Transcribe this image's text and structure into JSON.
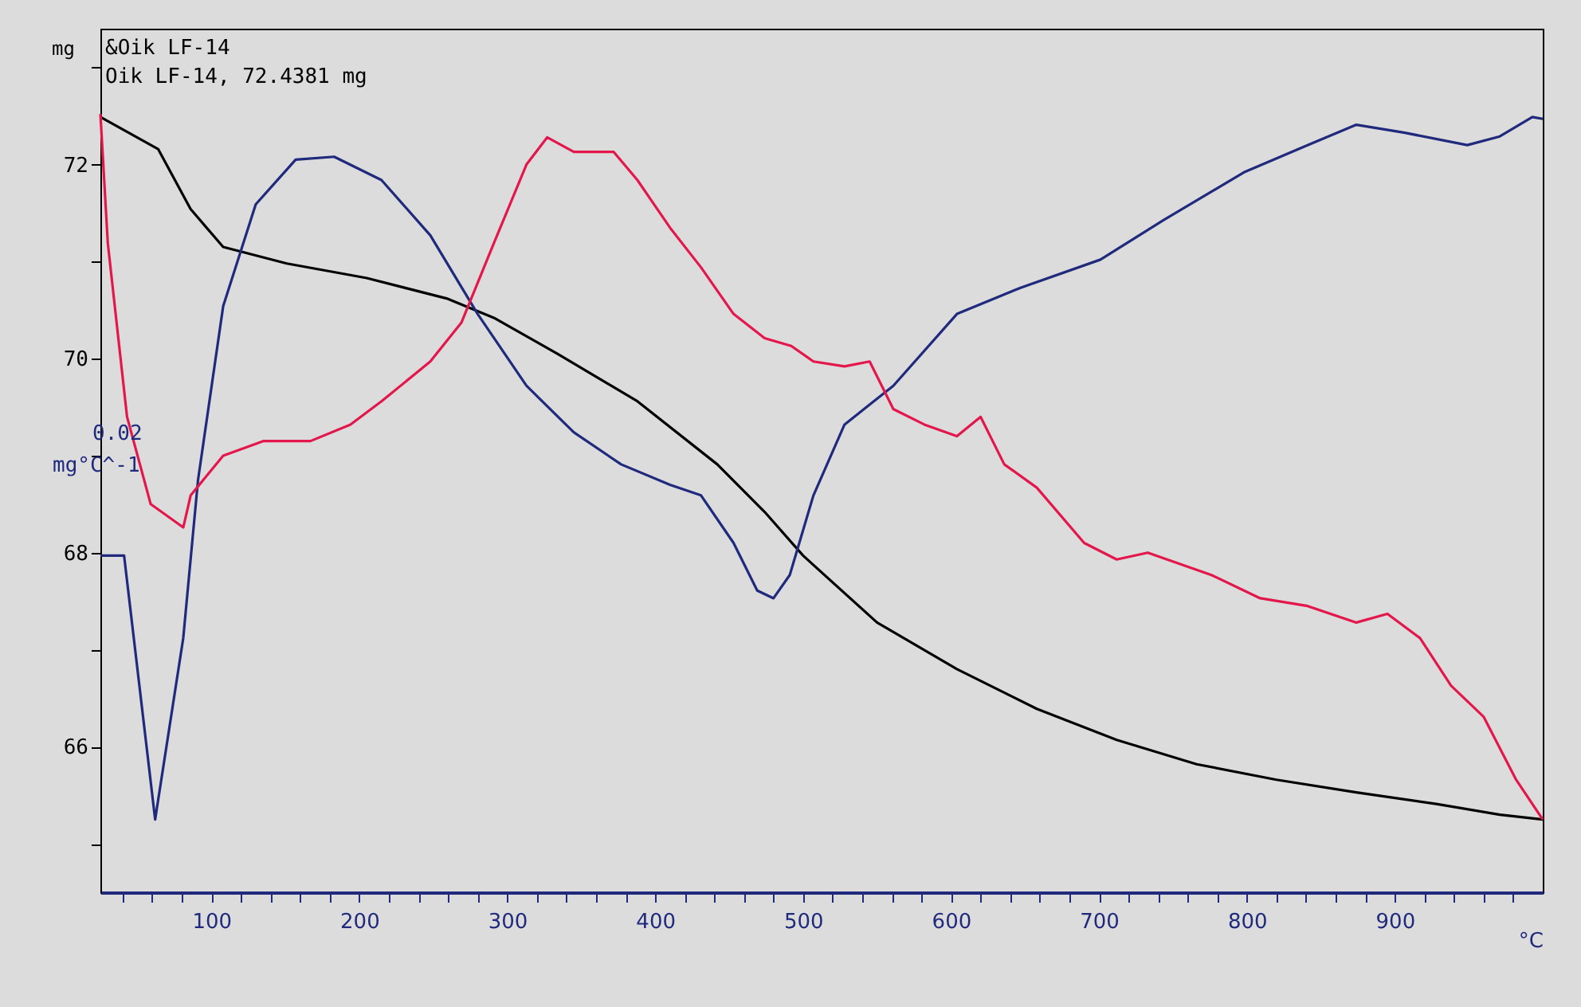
{
  "chart_data": {
    "type": "line",
    "xlabel": "°C",
    "ylabel": "mg",
    "annotations": [
      "&Oik LF-14",
      "Oik LF-14, 72.4381 mg",
      "0.02",
      "mg°C^-1"
    ],
    "xlim": [
      25,
      1000
    ],
    "ylim": [
      64.5,
      73.4
    ],
    "xticks": [
      {
        "value": 40,
        "label": null
      },
      {
        "value": 60,
        "label": null
      },
      {
        "value": 80,
        "label": null
      },
      100,
      {
        "value": 120,
        "label": null
      },
      {
        "value": 140,
        "label": null
      },
      {
        "value": 160,
        "label": null
      },
      {
        "value": 180,
        "label": null
      },
      200,
      {
        "value": 220,
        "label": null
      },
      {
        "value": 240,
        "label": null
      },
      {
        "value": 260,
        "label": null
      },
      {
        "value": 280,
        "label": null
      },
      300,
      {
        "value": 320,
        "label": null
      },
      {
        "value": 340,
        "label": null
      },
      {
        "value": 360,
        "label": null
      },
      {
        "value": 380,
        "label": null
      },
      400,
      {
        "value": 420,
        "label": null
      },
      {
        "value": 440,
        "label": null
      },
      {
        "value": 460,
        "label": null
      },
      {
        "value": 480,
        "label": null
      },
      500,
      {
        "value": 520,
        "label": null
      },
      {
        "value": 540,
        "label": null
      },
      {
        "value": 560,
        "label": null
      },
      {
        "value": 580,
        "label": null
      },
      600,
      {
        "value": 620,
        "label": null
      },
      {
        "value": 640,
        "label": null
      },
      {
        "value": 660,
        "label": null
      },
      {
        "value": 680,
        "label": null
      },
      700,
      {
        "value": 720,
        "label": null
      },
      {
        "value": 740,
        "label": null
      },
      {
        "value": 760,
        "label": null
      },
      {
        "value": 780,
        "label": null
      },
      800,
      {
        "value": 820,
        "label": null
      },
      {
        "value": 840,
        "label": null
      },
      {
        "value": 860,
        "label": null
      },
      {
        "value": 880,
        "label": null
      },
      900,
      {
        "value": 920,
        "label": null
      },
      {
        "value": 940,
        "label": null
      },
      {
        "value": 960,
        "label": null
      },
      {
        "value": 980,
        "label": null
      }
    ],
    "yticks": [
      {
        "value": 65,
        "label": null
      },
      66,
      {
        "value": 67,
        "label": null
      },
      68,
      {
        "value": 69,
        "label": null
      },
      70,
      {
        "value": 71,
        "label": null
      },
      72,
      {
        "value": 73,
        "label": null
      }
    ],
    "grid": false,
    "marker": "none",
    "line_style": "solid",
    "series": [
      {
        "color": "#000000",
        "x": [
          25,
          64,
          86,
          108,
          151,
          205,
          259,
          291,
          334,
          388,
          442,
          474,
          500,
          550,
          604,
          658,
          712,
          766,
          820,
          874,
          928,
          971,
          1000
        ],
        "values": [
          72.49,
          72.16,
          71.54,
          71.15,
          70.98,
          70.83,
          70.62,
          70.42,
          70.05,
          69.56,
          68.91,
          68.42,
          67.97,
          67.28,
          66.8,
          66.39,
          66.07,
          65.82,
          65.66,
          65.53,
          65.41,
          65.3,
          65.25
        ]
      },
      {
        "color": "#1f2a7c",
        "x": [
          25,
          41,
          62,
          81,
          91,
          108,
          130,
          157,
          183,
          215,
          248,
          280,
          313,
          345,
          377,
          410,
          431,
          453,
          469,
          480,
          491,
          507,
          528,
          561,
          604,
          647,
          701,
          744,
          798,
          841,
          874,
          906,
          949,
          971,
          993,
          1000
        ],
        "values": [
          67.97,
          67.97,
          65.25,
          67.12,
          68.75,
          70.54,
          71.59,
          72.05,
          72.08,
          71.84,
          71.27,
          70.46,
          69.72,
          69.24,
          68.91,
          68.7,
          68.59,
          68.1,
          67.61,
          67.53,
          67.77,
          68.59,
          69.32,
          69.72,
          70.46,
          70.73,
          71.02,
          71.43,
          71.92,
          72.2,
          72.41,
          72.33,
          72.2,
          72.29,
          72.49,
          72.47
        ]
      },
      {
        "color": "#e3174b",
        "x": [
          25,
          30,
          43,
          59,
          81,
          86,
          108,
          135,
          167,
          194,
          215,
          248,
          269,
          291,
          313,
          327,
          345,
          372,
          388,
          410,
          431,
          453,
          474,
          492,
          507,
          528,
          545,
          561,
          582,
          604,
          620,
          636,
          658,
          690,
          712,
          733,
          776,
          809,
          841,
          874,
          895,
          917,
          938,
          960,
          982,
          1000
        ],
        "values": [
          72.52,
          71.19,
          69.4,
          68.5,
          68.26,
          68.59,
          69.0,
          69.15,
          69.15,
          69.32,
          69.56,
          69.97,
          70.37,
          71.19,
          72.0,
          72.28,
          72.13,
          72.13,
          71.84,
          71.35,
          70.94,
          70.46,
          70.21,
          70.13,
          69.97,
          69.92,
          69.97,
          69.48,
          69.32,
          69.2,
          69.4,
          68.91,
          68.67,
          68.1,
          67.93,
          68.0,
          67.77,
          67.53,
          67.45,
          67.28,
          67.37,
          67.12,
          66.63,
          66.31,
          65.66,
          65.25
        ]
      }
    ]
  }
}
